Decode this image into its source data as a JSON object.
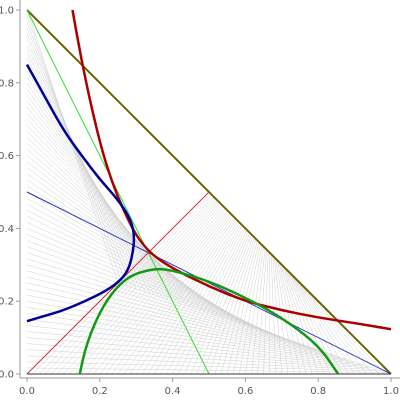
{
  "chart_data": {
    "type": "line",
    "title": "",
    "xlabel": "",
    "ylabel": "",
    "xlim": [
      0,
      1
    ],
    "ylim": [
      0,
      1
    ],
    "grid": false,
    "legend": "none",
    "x_ticks": [
      "0.0",
      "0.2",
      "0.4",
      "0.6",
      "0.8",
      "1.0"
    ],
    "y_ticks": [
      "0.0",
      "0.2",
      "0.4",
      "0.6",
      "0.8",
      "1.0"
    ],
    "series": [
      {
        "kind": "fan",
        "color": "#d0d0d0",
        "description_source": "family of tangent lines",
        "lines": 60
      },
      {
        "kind": "line",
        "color": "#666600",
        "points": [
          [
            0,
            1
          ],
          [
            1,
            0
          ]
        ]
      },
      {
        "kind": "line",
        "color": "#33dd33",
        "points": [
          [
            0,
            1
          ],
          [
            0.5,
            0
          ]
        ]
      },
      {
        "kind": "line",
        "color": "#2233cc",
        "points": [
          [
            0,
            0.5
          ],
          [
            1,
            0
          ]
        ]
      },
      {
        "kind": "line",
        "color": "#cc3333",
        "points": [
          [
            0,
            0
          ],
          [
            0.5,
            0.5
          ]
        ]
      },
      {
        "kind": "line",
        "color": "#333333",
        "points": [
          [
            0,
            0
          ],
          [
            1,
            0
          ]
        ]
      },
      {
        "kind": "curve",
        "color": "#aa0000",
        "points": [
          [
            0.125,
            1.0
          ],
          [
            0.15,
            0.86
          ],
          [
            0.18,
            0.72
          ],
          [
            0.21,
            0.6
          ],
          [
            0.24,
            0.51
          ],
          [
            0.27,
            0.44
          ],
          [
            0.3,
            0.38
          ],
          [
            0.34,
            0.33
          ],
          [
            0.4,
            0.29
          ],
          [
            0.5,
            0.24
          ],
          [
            0.6,
            0.2
          ],
          [
            0.7,
            0.175
          ],
          [
            0.8,
            0.155
          ],
          [
            0.9,
            0.14
          ],
          [
            1.0,
            0.123
          ]
        ]
      },
      {
        "kind": "curve",
        "color": "#000099",
        "points": [
          [
            0.0,
            0.85
          ],
          [
            0.05,
            0.76
          ],
          [
            0.1,
            0.67
          ],
          [
            0.15,
            0.6
          ],
          [
            0.2,
            0.535
          ],
          [
            0.24,
            0.49
          ],
          [
            0.27,
            0.45
          ],
          [
            0.29,
            0.41
          ],
          [
            0.295,
            0.37
          ],
          [
            0.29,
            0.33
          ],
          [
            0.28,
            0.29
          ],
          [
            0.26,
            0.26
          ],
          [
            0.22,
            0.23
          ],
          [
            0.16,
            0.2
          ],
          [
            0.1,
            0.175
          ],
          [
            0.05,
            0.16
          ],
          [
            0.0,
            0.145
          ]
        ]
      },
      {
        "kind": "curve",
        "color": "#119911",
        "points": [
          [
            0.145,
            0.0
          ],
          [
            0.16,
            0.07
          ],
          [
            0.19,
            0.15
          ],
          [
            0.23,
            0.22
          ],
          [
            0.28,
            0.27
          ],
          [
            0.35,
            0.29
          ],
          [
            0.4,
            0.285
          ],
          [
            0.5,
            0.255
          ],
          [
            0.6,
            0.21
          ],
          [
            0.7,
            0.155
          ],
          [
            0.8,
            0.08
          ],
          [
            0.855,
            0.0
          ]
        ]
      }
    ]
  }
}
